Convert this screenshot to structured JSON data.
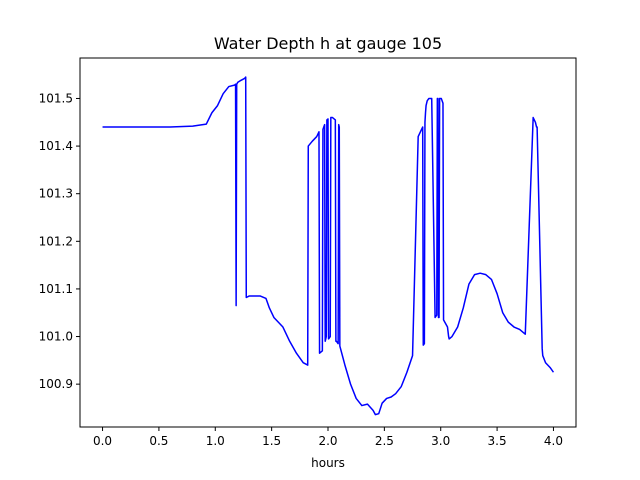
{
  "chart_data": {
    "type": "line",
    "title": "Water Depth h at gauge 105",
    "xlabel": "hours",
    "ylabel": "",
    "xlim": [
      -0.2,
      4.2
    ],
    "ylim": [
      100.81,
      101.585
    ],
    "xticks": [
      0.0,
      0.5,
      1.0,
      1.5,
      2.0,
      2.5,
      3.0,
      3.5,
      4.0
    ],
    "xtick_labels": [
      "0.0",
      "0.5",
      "1.0",
      "1.5",
      "2.0",
      "2.5",
      "3.0",
      "3.5",
      "4.0"
    ],
    "yticks": [
      100.9,
      101.0,
      101.1,
      101.2,
      101.3,
      101.4,
      101.5
    ],
    "ytick_labels": [
      "100.9",
      "101.0",
      "101.1",
      "101.2",
      "101.3",
      "101.4",
      "101.5"
    ],
    "grid": false,
    "series": [
      {
        "color": "#0000ff",
        "x": [
          0.0,
          0.3,
          0.6,
          0.8,
          0.92,
          0.97,
          1.02,
          1.07,
          1.12,
          1.17,
          1.18,
          1.185,
          1.19,
          1.2,
          1.22,
          1.26,
          1.27,
          1.275,
          1.3,
          1.4,
          1.45,
          1.48,
          1.52,
          1.6,
          1.66,
          1.72,
          1.78,
          1.82,
          1.825,
          1.86,
          1.9,
          1.92,
          1.925,
          1.95,
          1.955,
          1.97,
          1.975,
          1.985,
          1.99,
          2.0,
          2.005,
          2.02,
          2.025,
          2.04,
          2.065,
          2.07,
          2.075,
          2.09,
          2.095,
          2.1,
          2.105,
          2.15,
          2.2,
          2.25,
          2.3,
          2.35,
          2.4,
          2.42,
          2.45,
          2.48,
          2.52,
          2.56,
          2.6,
          2.65,
          2.7,
          2.75,
          2.8,
          2.84,
          2.845,
          2.855,
          2.86,
          2.865,
          2.87,
          2.88,
          2.895,
          2.92,
          2.95,
          2.965,
          2.97,
          2.975,
          2.98,
          2.985,
          2.99,
          3.0,
          3.005,
          3.02,
          3.025,
          3.06,
          3.07,
          3.075,
          3.1,
          3.15,
          3.2,
          3.25,
          3.3,
          3.35,
          3.4,
          3.45,
          3.5,
          3.55,
          3.6,
          3.65,
          3.7,
          3.75,
          3.82,
          3.84,
          3.85,
          3.855,
          3.9,
          3.905,
          3.93,
          3.97,
          4.0
        ],
        "y": [
          101.44,
          101.44,
          101.44,
          101.442,
          101.446,
          101.47,
          101.485,
          101.51,
          101.525,
          101.528,
          101.53,
          101.065,
          101.53,
          101.534,
          101.537,
          101.542,
          101.545,
          101.082,
          101.085,
          101.085,
          101.08,
          101.06,
          101.04,
          101.02,
          100.99,
          100.965,
          100.945,
          100.94,
          101.4,
          101.41,
          101.42,
          101.43,
          100.965,
          100.97,
          101.435,
          101.445,
          100.99,
          101.0,
          101.455,
          101.457,
          100.995,
          101.0,
          101.46,
          101.46,
          101.455,
          100.99,
          100.99,
          100.985,
          101.445,
          101.44,
          100.98,
          100.94,
          100.9,
          100.87,
          100.855,
          100.858,
          100.845,
          100.836,
          100.838,
          100.86,
          100.87,
          100.873,
          100.88,
          100.895,
          100.925,
          100.96,
          101.42,
          101.44,
          100.982,
          100.985,
          101.45,
          101.47,
          101.485,
          101.495,
          101.5,
          101.5,
          101.04,
          101.045,
          101.5,
          101.5,
          101.04,
          101.04,
          101.5,
          101.5,
          101.5,
          101.49,
          101.035,
          101.02,
          101.0,
          100.995,
          101.0,
          101.02,
          101.06,
          101.11,
          101.13,
          101.133,
          101.13,
          101.12,
          101.09,
          101.05,
          101.03,
          101.02,
          101.015,
          101.005,
          101.46,
          101.45,
          101.44,
          101.44,
          100.975,
          100.96,
          100.945,
          100.935,
          100.925
        ]
      }
    ]
  }
}
